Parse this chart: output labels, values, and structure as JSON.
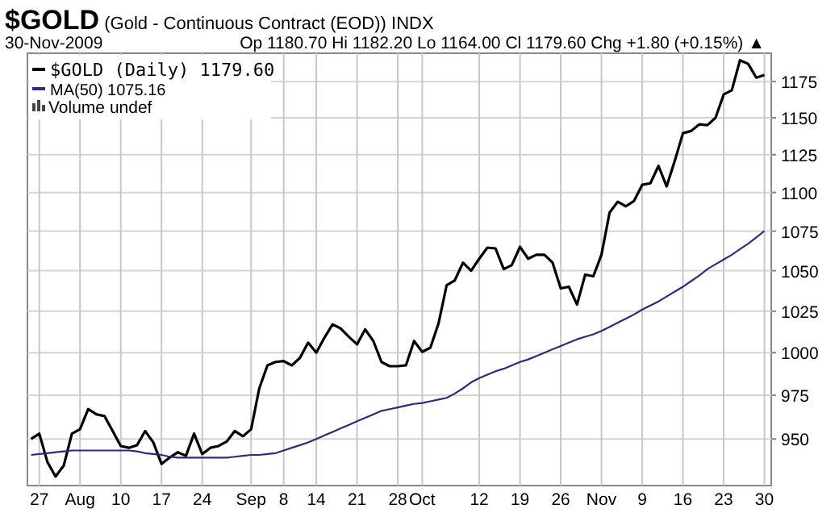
{
  "chart_data": {
    "type": "line",
    "title": "$GOLD (Gold - Continuous Contract (EOD)) INDX",
    "subtitle": "30-Nov-2009",
    "annotations": [
      "Op 1180.70 Hi 1182.20 Lo 1164.00 Cl 1179.60 Chg +1.80 (+0.15%) ▲",
      "Volume undef"
    ],
    "categories": [
      null,
      "27",
      null,
      null,
      null,
      null,
      "Aug",
      null,
      null,
      null,
      null,
      "10",
      null,
      null,
      null,
      null,
      "17",
      null,
      null,
      null,
      null,
      "24",
      null,
      null,
      null,
      null,
      null,
      "Sep",
      null,
      null,
      null,
      "8",
      null,
      null,
      null,
      "14",
      null,
      null,
      null,
      null,
      "21",
      null,
      null,
      null,
      null,
      "28",
      null,
      null,
      "Oct",
      null,
      null,
      null,
      null,
      null,
      null,
      "12",
      null,
      null,
      null,
      null,
      "19",
      null,
      null,
      null,
      null,
      "26",
      null,
      null,
      null,
      null,
      "Nov",
      null,
      null,
      null,
      null,
      "9",
      null,
      null,
      null,
      null,
      "16",
      null,
      null,
      null,
      null,
      "23",
      null,
      null,
      null,
      null,
      "30"
    ],
    "series": [
      {
        "name": "$GOLD (Daily) 1179.60",
        "color": "#000000",
        "values": [
          950,
          953,
          937,
          929,
          935,
          953,
          955.5,
          967,
          964,
          963,
          954.5,
          946,
          945,
          946.5,
          954.5,
          948,
          936,
          939.5,
          942.5,
          940.5,
          953,
          941.5,
          945,
          946,
          948.5,
          954.5,
          951.5,
          955.5,
          979,
          992.5,
          994.5,
          995,
          992.5,
          997,
          1006,
          1000,
          1009,
          1017,
          1014.5,
          1009.5,
          1005,
          1014,
          1007,
          994.5,
          992,
          992,
          992.5,
          1007,
          1000.5,
          1003,
          1017.5,
          1041,
          1044,
          1055,
          1050,
          1057.5,
          1064.5,
          1064,
          1051,
          1053.5,
          1065,
          1057.5,
          1060,
          1060,
          1055,
          1039,
          1040,
          1029,
          1047.5,
          1046.5,
          1060,
          1087,
          1094,
          1091,
          1094.5,
          1105,
          1106,
          1117.5,
          1104,
          1121,
          1139.5,
          1141,
          1145.5,
          1145,
          1150,
          1166,
          1169,
          1190,
          1187.5,
          1177.8,
          1179.6
        ]
      },
      {
        "name": "MA(50) 1075.16",
        "color": "#2b2b80",
        "values": [
          941,
          941.5,
          942,
          942.5,
          943,
          943.5,
          943.5,
          943.5,
          943.5,
          943.5,
          943.5,
          943.5,
          943.5,
          943,
          942,
          941.5,
          941,
          940,
          939.5,
          939.5,
          939.5,
          939.5,
          939.5,
          939.5,
          939.5,
          940,
          940.5,
          941,
          941,
          941.5,
          942,
          943.5,
          945,
          946.5,
          948,
          950,
          952,
          954,
          956,
          958,
          960,
          962,
          964,
          966,
          967,
          968,
          969,
          970,
          970.5,
          971.5,
          972.5,
          973.5,
          976,
          979,
          982.5,
          985,
          987,
          989,
          990.5,
          992.5,
          994.5,
          996,
          998,
          1000,
          1002,
          1004,
          1006,
          1008,
          1009.5,
          1011,
          1013,
          1015.5,
          1018,
          1020.5,
          1023,
          1026,
          1028.5,
          1031,
          1034,
          1037,
          1040,
          1043.5,
          1047,
          1051,
          1054,
          1057,
          1060,
          1063.5,
          1067,
          1071,
          1075.16
        ]
      }
    ],
    "ylim": [
      924,
      1195
    ],
    "yticks": [
      950,
      975,
      1000,
      1025,
      1050,
      1075,
      1100,
      1125,
      1150,
      1175
    ],
    "log": true,
    "grid": true,
    "legend": "top left"
  }
}
